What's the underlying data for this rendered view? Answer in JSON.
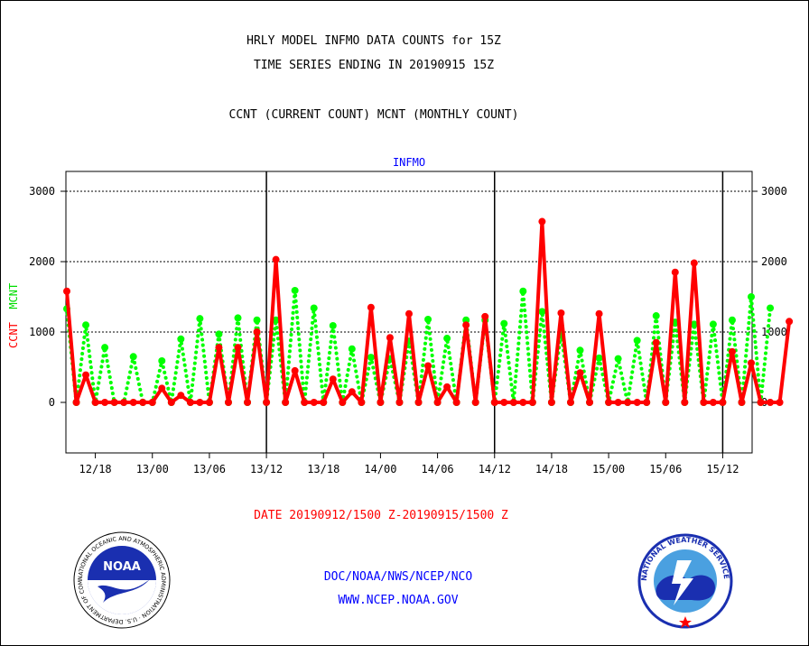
{
  "header": {
    "title_line1": "HRLY MODEL INFMO DATA COUNTS for 15Z",
    "title_line2": "TIME SERIES ENDING IN 20190915 15Z",
    "subtitle": "CCNT (CURRENT COUNT) MCNT (MONTHLY COUNT)"
  },
  "footer": {
    "date_range": "DATE 20190912/1500 Z-20190915/1500 Z",
    "org": "DOC/NOAA/NWS/NCEP/NCO",
    "url": "WWW.NCEP.NOAA.GOV"
  },
  "logos": {
    "noaa_label": "NOAA",
    "noaa_ring_text": "NATIONAL OCEANIC AND ATMOSPHERIC ADMINISTRATION · U.S. DEPARTMENT OF COMMERCE",
    "nws_ring_text": "NATIONAL WEATHER SERVICE"
  },
  "colors": {
    "ccnt": "#ff0000",
    "mcnt": "#00ff00",
    "title": "#0000ff",
    "date": "#ff0000",
    "footer": "#0000ff"
  },
  "chart_data": {
    "type": "line",
    "title": "INFMO",
    "ylabel_parts": [
      "CCNT",
      "MCNT"
    ],
    "ylim": [
      -700,
      3300
    ],
    "yticks": [
      0,
      1000,
      2000,
      3000
    ],
    "x_hours_range": [
      0,
      72
    ],
    "x_ticks": [
      {
        "h": 3,
        "label": "12/18"
      },
      {
        "h": 9,
        "label": "13/00"
      },
      {
        "h": 15,
        "label": "13/06"
      },
      {
        "h": 21,
        "label": "13/12"
      },
      {
        "h": 27,
        "label": "13/18"
      },
      {
        "h": 33,
        "label": "14/00"
      },
      {
        "h": 39,
        "label": "14/06"
      },
      {
        "h": 45,
        "label": "14/12"
      },
      {
        "h": 51,
        "label": "14/18"
      },
      {
        "h": 57,
        "label": "15/00"
      },
      {
        "h": 63,
        "label": "15/06"
      },
      {
        "h": 69,
        "label": "15/12"
      }
    ],
    "day_boundaries_h": [
      21,
      45,
      69
    ],
    "grid_y": [
      1000,
      2000,
      3000
    ],
    "series": [
      {
        "name": "CCNT",
        "color": "#ff0000",
        "style": "solid",
        "values": [
          1580,
          0,
          390,
          0,
          0,
          0,
          0,
          0,
          0,
          0,
          200,
          0,
          100,
          0,
          0,
          0,
          780,
          0,
          780,
          0,
          1000,
          0,
          2030,
          0,
          450,
          0,
          0,
          0,
          330,
          0,
          150,
          0,
          1350,
          0,
          920,
          0,
          1260,
          0,
          520,
          0,
          220,
          0,
          1100,
          0,
          1220,
          0,
          0,
          0,
          0,
          0,
          2570,
          0,
          1270,
          0,
          420,
          0,
          1260,
          0,
          0,
          0,
          0,
          0,
          850,
          0,
          1850,
          0,
          1980,
          0,
          0,
          0,
          720,
          0,
          560,
          0,
          0,
          0,
          1150
        ]
      },
      {
        "name": "MCNT",
        "color": "#00ff00",
        "style": "dotted",
        "values": [
          1330,
          0,
          1100,
          0,
          780,
          0,
          0,
          650,
          0,
          0,
          590,
          0,
          900,
          0,
          1190,
          0,
          970,
          0,
          1200,
          0,
          1170,
          0,
          1170,
          0,
          1590,
          0,
          1340,
          0,
          1090,
          0,
          760,
          0,
          640,
          0,
          620,
          0,
          870,
          0,
          1180,
          0,
          910,
          0,
          1170,
          0,
          1170,
          0,
          1120,
          0,
          1580,
          0,
          1290,
          0,
          990,
          0,
          740,
          0,
          630,
          0,
          620,
          0,
          880,
          0,
          1230,
          0,
          1140,
          0,
          1110,
          0,
          1110,
          0,
          1170,
          0,
          1500,
          0,
          1340
        ]
      }
    ]
  }
}
